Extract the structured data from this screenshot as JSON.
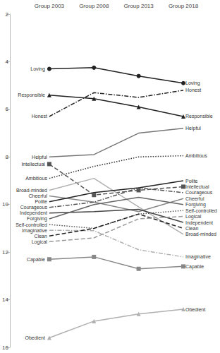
{
  "chart_data": {
    "type": "line",
    "categories": [
      "Group 2003",
      "Group 2008",
      "Group 2013",
      "Group 2018"
    ],
    "ylim": [
      2,
      16
    ],
    "yticks": [
      2,
      4,
      6,
      8,
      10,
      12,
      14,
      16
    ],
    "grid": false,
    "series": [
      {
        "name": "Loving",
        "color": "#222222",
        "marker": "circle",
        "line_style": "solid",
        "values": [
          4.3,
          4.25,
          4.6,
          4.9
        ]
      },
      {
        "name": "Responsible",
        "color": "#222222",
        "marker": "triangle",
        "line_style": "solid",
        "values": [
          5.4,
          5.55,
          5.9,
          6.3
        ]
      },
      {
        "name": "Honest",
        "color": "#222222",
        "marker": "none",
        "line_style": "dashdot",
        "values": [
          6.3,
          5.3,
          5.5,
          5.2
        ]
      },
      {
        "name": "Helpful",
        "color": "#777777",
        "marker": "none",
        "line_style": "solid",
        "values": [
          8.0,
          7.9,
          7.0,
          6.8
        ]
      },
      {
        "name": "Intellectual",
        "color": "#555555",
        "marker": "square",
        "line_style": "dashed",
        "values": [
          8.3,
          9.6,
          9.4,
          9.25
        ]
      },
      {
        "name": "Ambitious",
        "color": "#333333",
        "marker": "none",
        "line_style": "dotted",
        "values": [
          8.9,
          8.4,
          8.0,
          7.95
        ]
      },
      {
        "name": "Broad-minded",
        "color": "#b0b0b0",
        "marker": "none",
        "line_style": "solid",
        "values": [
          9.4,
          8.9,
          10.1,
          11.25
        ]
      },
      {
        "name": "Cheerful",
        "color": "#888888",
        "marker": "none",
        "line_style": "solid",
        "values": [
          9.64,
          9.9,
          10.3,
          9.75
        ]
      },
      {
        "name": "Polite",
        "color": "#222222",
        "marker": "none",
        "line_style": "solid",
        "values": [
          9.88,
          9.5,
          9.3,
          9.0
        ]
      },
      {
        "name": "Courageous",
        "color": "#555555",
        "marker": "none",
        "line_style": "dashdot",
        "values": [
          10.12,
          9.9,
          9.3,
          9.5
        ]
      },
      {
        "name": "Independent",
        "color": "#444444",
        "marker": "none",
        "line_style": "solid",
        "values": [
          10.36,
          10.3,
          10.2,
          10.75
        ]
      },
      {
        "name": "Forgiving",
        "color": "#666666",
        "marker": "none",
        "line_style": "solid",
        "values": [
          10.6,
          10.0,
          9.7,
          10.0
        ]
      },
      {
        "name": "Self-controlled",
        "color": "#555555",
        "marker": "none",
        "line_style": "dotted",
        "values": [
          10.84,
          11.0,
          10.4,
          10.25
        ]
      },
      {
        "name": "Imaginative",
        "color": "#b0b0b0",
        "marker": "none",
        "line_style": "dashdot",
        "values": [
          11.08,
          11.1,
          11.9,
          12.2
        ]
      },
      {
        "name": "Clean",
        "color": "#222222",
        "marker": "none",
        "line_style": "dashed",
        "values": [
          11.32,
          11.0,
          10.4,
          11.0
        ]
      },
      {
        "name": "Logical",
        "color": "#999999",
        "marker": "none",
        "line_style": "dashed",
        "values": [
          11.56,
          11.4,
          10.6,
          10.5
        ]
      },
      {
        "name": "Capable",
        "color": "#888888",
        "marker": "square",
        "line_style": "solid",
        "values": [
          12.3,
          12.2,
          12.7,
          12.6
        ]
      },
      {
        "name": "Obedient",
        "color": "#b0b0b0",
        "marker": "triangle",
        "line_style": "solid",
        "values": [
          15.6,
          14.9,
          14.6,
          14.4
        ]
      }
    ]
  }
}
